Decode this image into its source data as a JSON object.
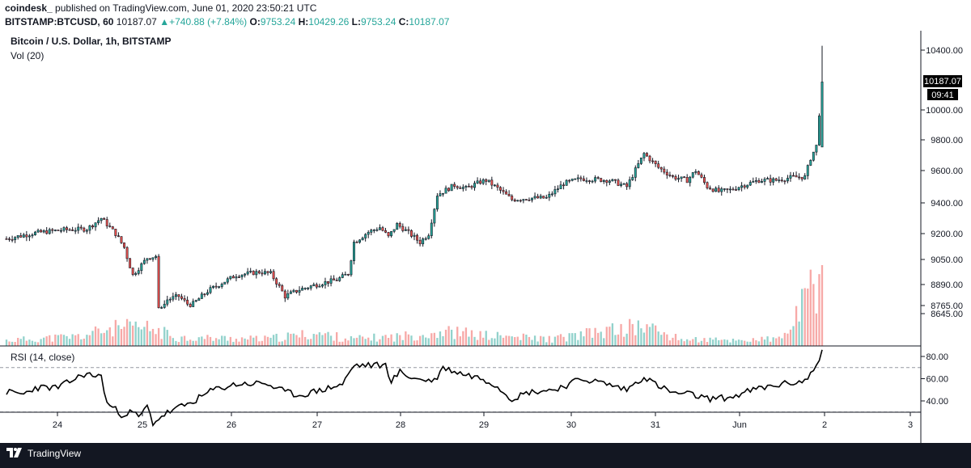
{
  "header": {
    "author": "coindesk_",
    "published_text": "published on TradingView.com, June 01, 2020 23:50:21 UTC",
    "symbol": "BITSTAMP:BTCUSD, 60",
    "last": "10187.07",
    "change": "+740.88 (+7.84%)",
    "open_label": "O:",
    "open": "9753.24",
    "high_label": "H:",
    "high": "10429.26",
    "low_label": "L:",
    "low": "9753.24",
    "close_label": "C:",
    "close": "10187.07"
  },
  "pane_title": "Bitcoin / U.S. Dollar, 1h, BITSTAMP",
  "volume_label": "Vol (20)",
  "rsi_label": "RSI (14, close)",
  "price_badge": "10187.07",
  "countdown_badge": "09:41",
  "footer": {
    "logo_text": "TradingView"
  },
  "colors": {
    "up": "#26a69a",
    "down": "#ef5350",
    "rsi_line": "#000000",
    "footer_bg": "#131722"
  },
  "chart_data": [
    {
      "type": "candlestick",
      "title": "Bitcoin / U.S. Dollar, 1h, BITSTAMP",
      "y_axis_ticks": [
        8645,
        8765,
        8890,
        9050,
        9200,
        9400,
        9600,
        9800,
        10000,
        10400
      ],
      "y_axis_labels": [
        "8645.00",
        "8765.00",
        "8890.00",
        "9050.00",
        "9200.00",
        "9400.00",
        "9600.00",
        "9800.00",
        "10000.00",
        "10400.00"
      ],
      "scale": "log",
      "x_ticks": [
        "24",
        "25",
        "26",
        "27",
        "28",
        "29",
        "30",
        "31",
        "Jun",
        "2",
        "3"
      ],
      "last_price": 10187.07,
      "approx_close_path": [
        [
          0,
          9170
        ],
        [
          10,
          9205
        ],
        [
          20,
          9225
        ],
        [
          28,
          9230
        ],
        [
          33,
          9300
        ],
        [
          38,
          9200
        ],
        [
          41,
          9120
        ],
        [
          44,
          8950
        ],
        [
          49,
          9060
        ],
        [
          52,
          9070
        ],
        [
          53,
          8720
        ],
        [
          56,
          8800
        ],
        [
          60,
          8820
        ],
        [
          64,
          8760
        ],
        [
          70,
          8850
        ],
        [
          80,
          8950
        ],
        [
          88,
          8970
        ],
        [
          92,
          8960
        ],
        [
          97,
          8820
        ],
        [
          102,
          8860
        ],
        [
          110,
          8900
        ],
        [
          115,
          8920
        ],
        [
          119,
          8960
        ],
        [
          121,
          9150
        ],
        [
          126,
          9210
        ],
        [
          130,
          9240
        ],
        [
          133,
          9180
        ],
        [
          136,
          9260
        ],
        [
          139,
          9220
        ],
        [
          144,
          9150
        ],
        [
          147,
          9200
        ],
        [
          150,
          9450
        ],
        [
          156,
          9510
        ],
        [
          160,
          9490
        ],
        [
          165,
          9530
        ],
        [
          167,
          9540
        ],
        [
          171,
          9490
        ],
        [
          176,
          9420
        ],
        [
          182,
          9430
        ],
        [
          188,
          9430
        ],
        [
          194,
          9520
        ],
        [
          200,
          9550
        ],
        [
          210,
          9540
        ],
        [
          216,
          9500
        ],
        [
          222,
          9710
        ],
        [
          227,
          9620
        ],
        [
          232,
          9560
        ],
        [
          237,
          9540
        ],
        [
          240,
          9600
        ],
        [
          244,
          9500
        ],
        [
          248,
          9470
        ],
        [
          252,
          9480
        ],
        [
          255,
          9500
        ],
        [
          262,
          9540
        ],
        [
          268,
          9540
        ],
        [
          274,
          9560
        ],
        [
          278,
          9560
        ],
        [
          280,
          9680
        ],
        [
          282,
          9760
        ],
        [
          284,
          10187.07
        ]
      ]
    },
    {
      "type": "bar",
      "title": "Vol (20)",
      "note": "hourly volume, relative heights",
      "approx_relative_heights": [
        [
          0,
          0.08
        ],
        [
          26,
          0.14
        ],
        [
          36,
          0.25
        ],
        [
          44,
          0.26
        ],
        [
          50,
          0.25
        ],
        [
          60,
          0.12
        ],
        [
          90,
          0.1
        ],
        [
          108,
          0.18
        ],
        [
          120,
          0.1
        ],
        [
          138,
          0.14
        ],
        [
          152,
          0.21
        ],
        [
          160,
          0.18
        ],
        [
          166,
          0.15
        ],
        [
          190,
          0.1
        ],
        [
          222,
          0.29
        ],
        [
          234,
          0.1
        ],
        [
          250,
          0.08
        ],
        [
          270,
          0.1
        ],
        [
          284,
          1.0
        ]
      ]
    },
    {
      "type": "line",
      "title": "RSI (14, close)",
      "y_axis_ticks": [
        40,
        60,
        80
      ],
      "y_axis_labels": [
        "40.00",
        "60.00",
        "80.00"
      ],
      "bands": [
        30,
        70
      ],
      "approx_values": [
        [
          0,
          48
        ],
        [
          6,
          46
        ],
        [
          10,
          52
        ],
        [
          18,
          52
        ],
        [
          27,
          64
        ],
        [
          33,
          62
        ],
        [
          35,
          38
        ],
        [
          40,
          28
        ],
        [
          44,
          30
        ],
        [
          46,
          25
        ],
        [
          49,
          35
        ],
        [
          51,
          20
        ],
        [
          55,
          28
        ],
        [
          60,
          34
        ],
        [
          64,
          38
        ],
        [
          72,
          50
        ],
        [
          80,
          55
        ],
        [
          90,
          56
        ],
        [
          97,
          48
        ],
        [
          102,
          45
        ],
        [
          110,
          50
        ],
        [
          117,
          55
        ],
        [
          121,
          72
        ],
        [
          127,
          72
        ],
        [
          132,
          72
        ],
        [
          134,
          58
        ],
        [
          137,
          66
        ],
        [
          142,
          60
        ],
        [
          149,
          58
        ],
        [
          152,
          70
        ],
        [
          158,
          65
        ],
        [
          166,
          60
        ],
        [
          170,
          55
        ],
        [
          176,
          42
        ],
        [
          182,
          48
        ],
        [
          190,
          50
        ],
        [
          196,
          55
        ],
        [
          200,
          60
        ],
        [
          208,
          56
        ],
        [
          216,
          50
        ],
        [
          222,
          62
        ],
        [
          226,
          55
        ],
        [
          232,
          47
        ],
        [
          238,
          46
        ],
        [
          244,
          42
        ],
        [
          252,
          43
        ],
        [
          260,
          50
        ],
        [
          270,
          55
        ],
        [
          278,
          58
        ],
        [
          280,
          64
        ],
        [
          282,
          72
        ],
        [
          284,
          86
        ]
      ]
    }
  ]
}
